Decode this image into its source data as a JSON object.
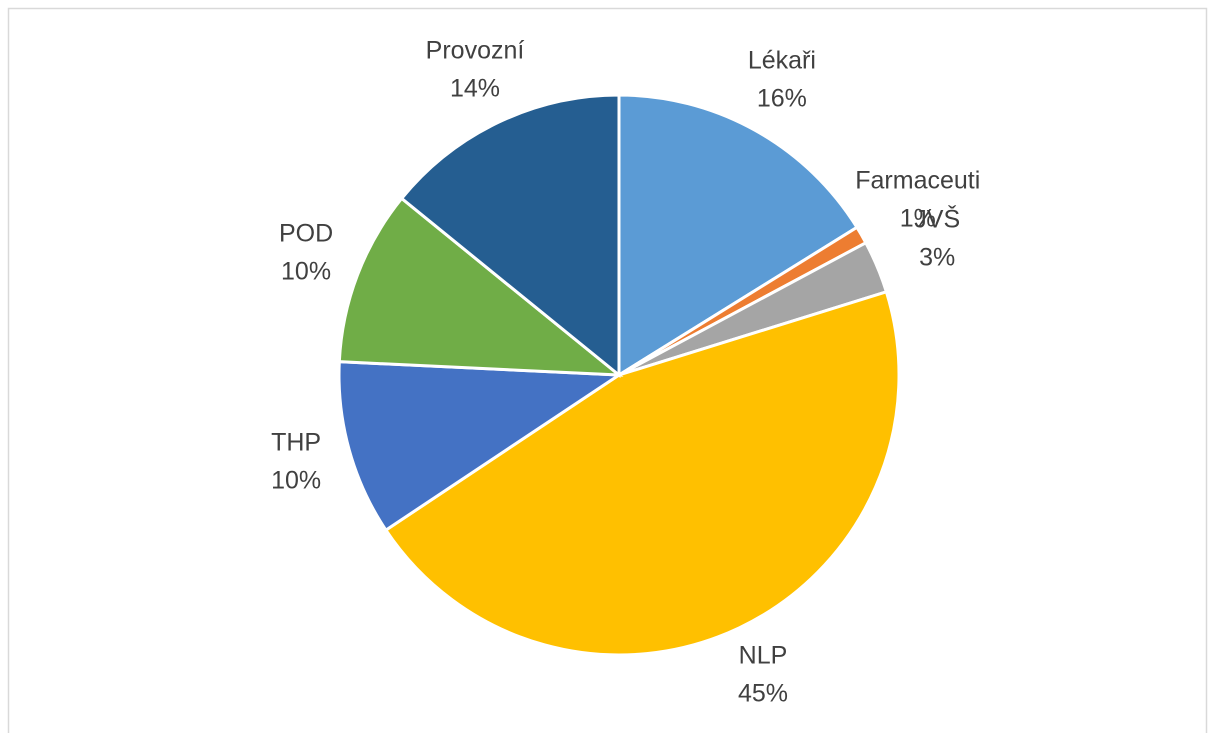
{
  "chart_data": {
    "type": "pie",
    "categories": [
      "Lékaři",
      "Farmaceuti",
      "JVŠ",
      "NLP",
      "THP",
      "POD",
      "Provozní"
    ],
    "values": [
      16,
      1,
      3,
      45,
      10,
      10,
      14
    ],
    "value_labels": [
      "16%",
      "1%",
      "3%",
      "45%",
      "10%",
      "10%",
      "14%"
    ],
    "colors": [
      "#5b9bd5",
      "#ed7d31",
      "#a5a5a5",
      "#ffc000",
      "#4472c4",
      "#70ad47",
      "#255e91"
    ]
  }
}
